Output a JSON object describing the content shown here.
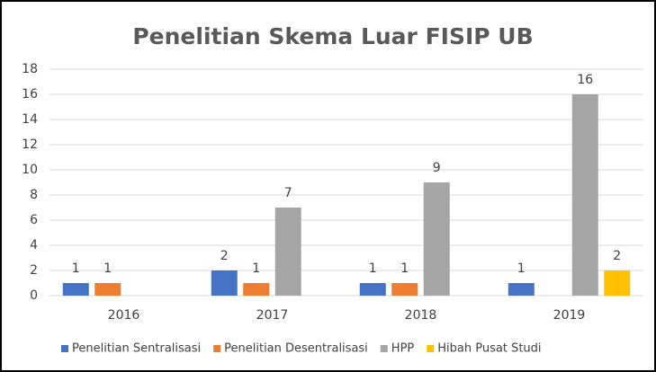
{
  "chart_data": {
    "type": "bar",
    "title": "Penelitian Skema Luar FISIP UB",
    "categories": [
      "2016",
      "2017",
      "2018",
      "2019"
    ],
    "series": [
      {
        "name": "Penelitian Sentralisasi",
        "color": "#4472c4",
        "values": [
          1,
          2,
          1,
          1
        ]
      },
      {
        "name": "Penelitian Desentralisasi",
        "color": "#ed7d31",
        "values": [
          1,
          1,
          1,
          null
        ]
      },
      {
        "name": "HPP",
        "color": "#a5a5a5",
        "values": [
          null,
          7,
          9,
          16
        ]
      },
      {
        "name": "Hibah Pusat Studi",
        "color": "#ffc000",
        "values": [
          null,
          null,
          null,
          2
        ]
      }
    ],
    "ylim": [
      0,
      18
    ],
    "yticks": [
      0,
      2,
      4,
      6,
      8,
      10,
      12,
      14,
      16,
      18
    ],
    "grid": true,
    "legend": "bottom"
  }
}
